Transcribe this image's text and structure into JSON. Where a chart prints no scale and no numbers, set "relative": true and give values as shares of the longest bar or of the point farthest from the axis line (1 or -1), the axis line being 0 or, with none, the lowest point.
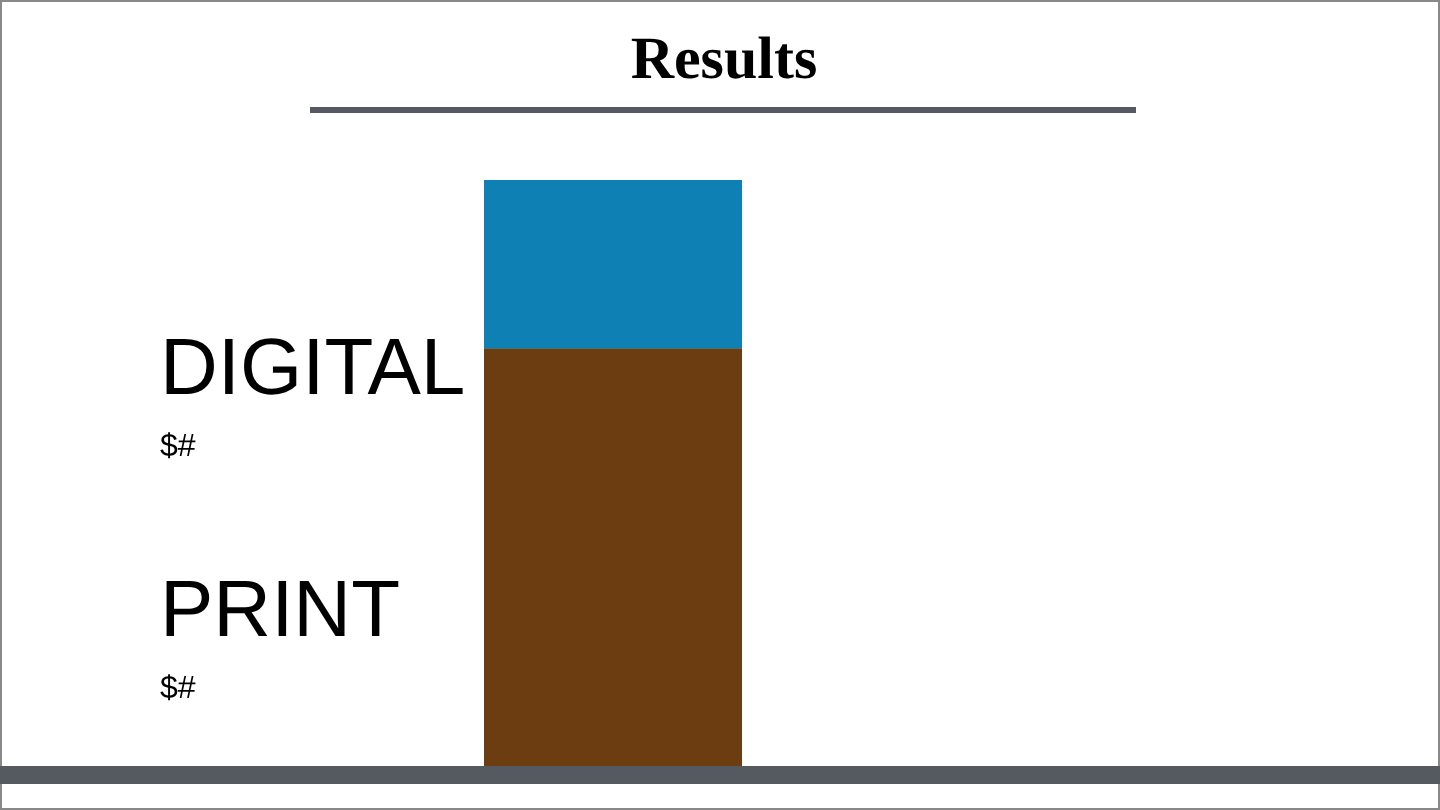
{
  "chart_data": {
    "type": "bar",
    "title": "Results",
    "categories": [
      null
    ],
    "stacked": true,
    "relative": true,
    "series": [
      {
        "name": "PRINT",
        "color": "#6b3d10",
        "values": [
          0.713
        ]
      },
      {
        "name": "DIGITAL",
        "color": "#0e80b4",
        "values": [
          0.287
        ]
      }
    ],
    "annotations": [
      "$#",
      "$#"
    ]
  }
}
